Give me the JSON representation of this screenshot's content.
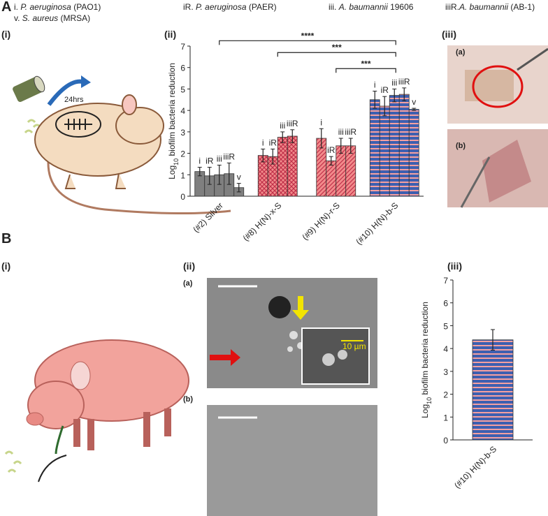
{
  "legend": [
    {
      "id": "i.",
      "species": "P. aeruginosa",
      "strain": "(PAO1)"
    },
    {
      "id": "v.",
      "species": "S. aureus",
      "strain": "(MRSA)"
    },
    {
      "id": "iR.",
      "species": "P. aeruginosa",
      "strain": "(PAER)"
    },
    {
      "id": "iii.",
      "species": "A. baumannii",
      "strain": "19606"
    },
    {
      "id": "iiiR.",
      "species": "A. baumannii",
      "strain": "(AB-1)"
    }
  ],
  "labels": {
    "A": "A",
    "A1": "(i)",
    "A2": "(ii)",
    "A3": "(iii)",
    "A3a": "(a)",
    "A3b": "(b)",
    "B": "B",
    "B1": "(i)",
    "B2": "(ii)",
    "B2a": "(a)",
    "B2b": "(b)",
    "B3": "(iii)",
    "timer": "24hrs",
    "scale": "10 µm"
  },
  "chart_data": [
    {
      "type": "bar",
      "ylabel": {
        "main": "Log",
        "sub": "10",
        "rest": " biofilm  bacteria reduction"
      },
      "categories": [
        "(#2) Silver",
        "(#8) H(N)-x-S",
        "(#9) H(N)-r-S",
        "(#10) H(N)-b-S"
      ],
      "category_colors": [
        "#7f7f7f",
        "#f28b8b",
        "#f28b8b",
        "#3d5fb0"
      ],
      "category_hatches": [
        "none",
        "cross",
        "diagonal",
        "horizontal"
      ],
      "hatch_colors": [
        "#7f7f7f",
        "#c0304a",
        "#c0304a",
        "#f4a0a0"
      ],
      "series": [
        {
          "name": "i",
          "values": [
            1.15,
            1.9,
            2.7,
            4.5
          ],
          "errors": [
            0.2,
            0.3,
            0.45,
            0.4
          ]
        },
        {
          "name": "iR",
          "values": [
            0.95,
            1.85,
            1.65,
            4.2
          ],
          "errors": [
            0.4,
            0.35,
            0.2,
            0.45
          ]
        },
        {
          "name": "iii",
          "values": [
            1.0,
            2.75,
            2.35,
            4.7
          ],
          "errors": [
            0.45,
            0.25,
            0.35,
            0.3
          ]
        },
        {
          "name": "iiiR",
          "values": [
            1.05,
            2.8,
            2.35,
            4.75
          ],
          "errors": [
            0.5,
            0.3,
            0.35,
            0.3
          ]
        },
        {
          "name": "v",
          "values": [
            0.4,
            null,
            null,
            4.05
          ],
          "errors": [
            0.2,
            null,
            null,
            0.05
          ]
        }
      ],
      "significance": [
        "****",
        "***",
        "***"
      ],
      "ylim": [
        0,
        7
      ],
      "yticks": [
        0,
        1,
        2,
        3,
        4,
        5,
        6,
        7
      ]
    },
    {
      "type": "bar",
      "ylabel": {
        "main": "Log",
        "sub": "10",
        "rest": " biofilm  bacteria reduction"
      },
      "categories": [
        "(#10) H(N)-b-S"
      ],
      "category_colors": [
        "#3d5fb0"
      ],
      "category_hatches": [
        "horizontal"
      ],
      "hatch_colors": [
        "#f4a0a0"
      ],
      "values": [
        4.38
      ],
      "errors": [
        0.45
      ],
      "ylim": [
        0,
        7
      ],
      "yticks": [
        0,
        1,
        2,
        3,
        4,
        5,
        6,
        7
      ]
    }
  ]
}
